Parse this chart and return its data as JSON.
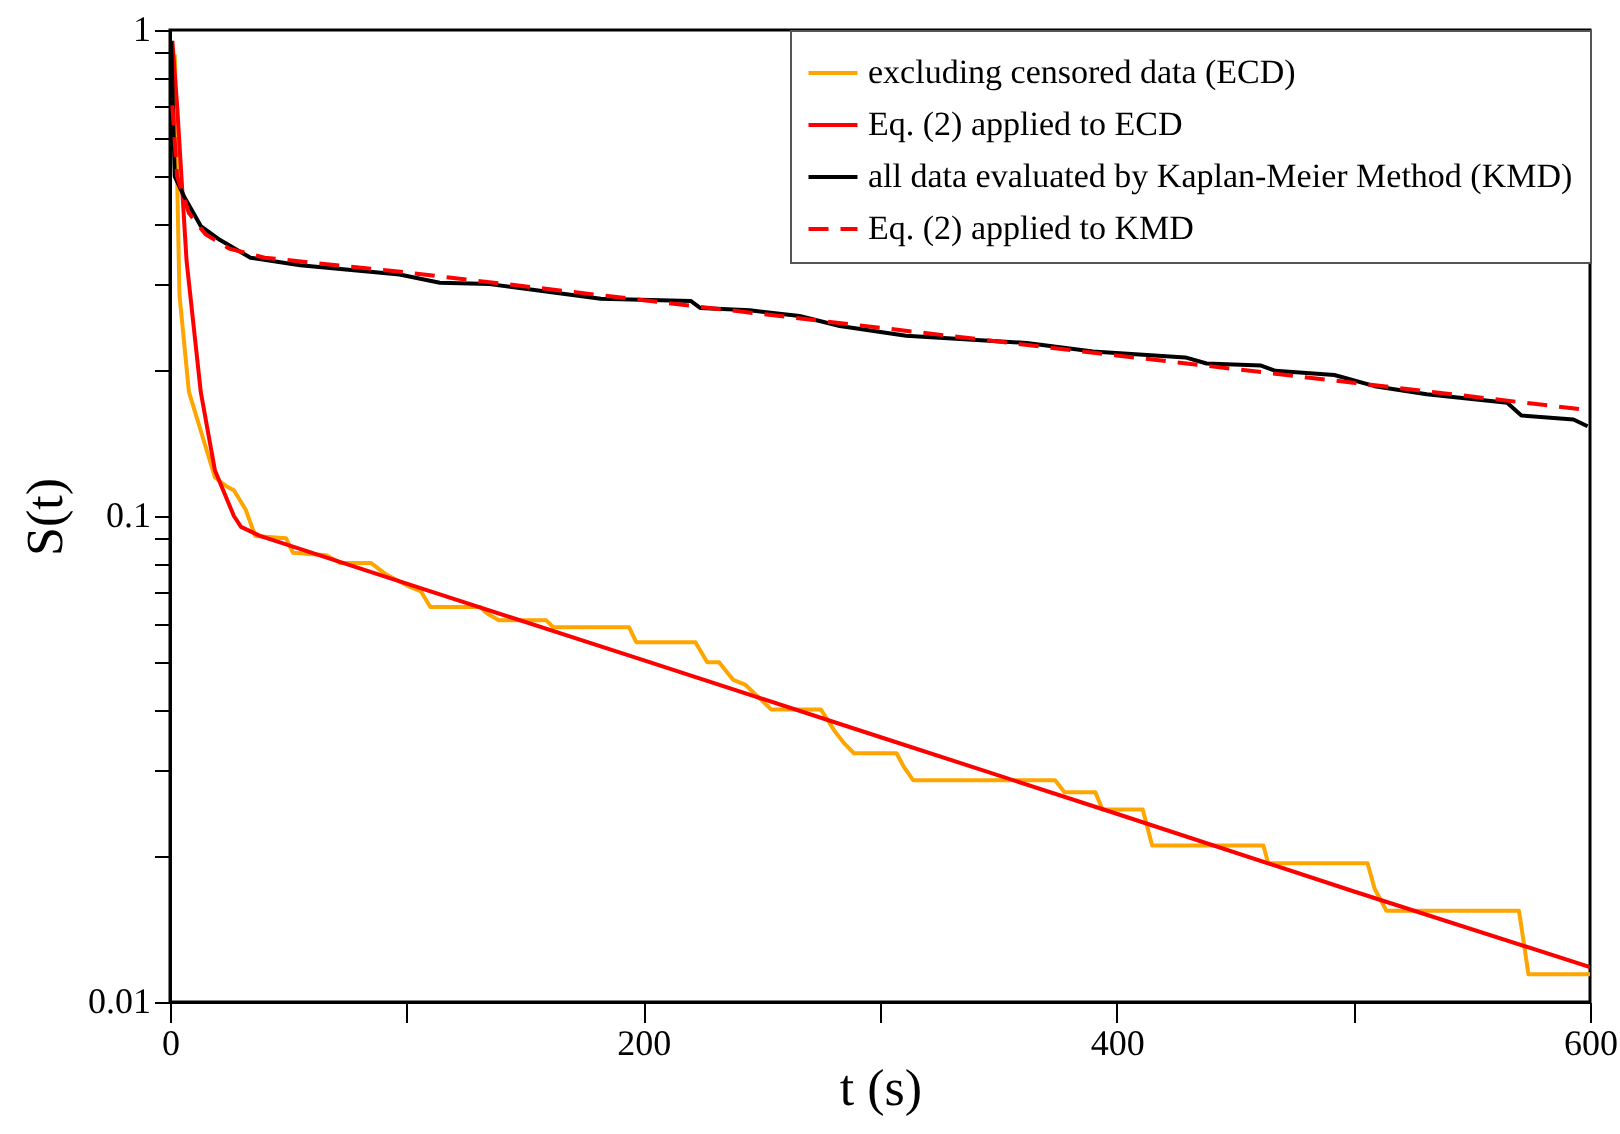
{
  "chart_data": {
    "type": "line",
    "xlabel": "t (s)",
    "ylabel": "S(t)",
    "log": "y",
    "legend": "top right",
    "xlim": [
      0,
      600
    ],
    "xticks": [
      0,
      {
        "value": 100,
        "label": null
      },
      200,
      {
        "value": 300,
        "label": null
      },
      400,
      {
        "value": 500,
        "label": null
      },
      600
    ],
    "ylim": [
      0.01,
      1
    ],
    "yticks": [
      0.01,
      {
        "value": 0.02,
        "label": null
      },
      {
        "value": 0.03,
        "label": null
      },
      {
        "value": 0.04,
        "label": null
      },
      {
        "value": 0.05,
        "label": null
      },
      {
        "value": 0.06,
        "label": null
      },
      {
        "value": 0.07,
        "label": null
      },
      {
        "value": 0.08,
        "label": null
      },
      {
        "value": 0.09,
        "label": null
      },
      0.1,
      {
        "value": 0.2,
        "label": null
      },
      {
        "value": 0.3,
        "label": null
      },
      {
        "value": 0.4,
        "label": null
      },
      {
        "value": 0.5,
        "label": null
      },
      {
        "value": 0.6,
        "label": null
      },
      {
        "value": 0.7,
        "label": null
      },
      {
        "value": 0.8,
        "label": null
      },
      {
        "value": 0.9,
        "label": null
      },
      1
    ],
    "series": [
      {
        "name": "excluding censored data (ECD)",
        "color": "#ffa500",
        "line_style": "solid",
        "x": [
          2,
          4,
          8,
          19,
          24,
          27,
          32,
          36,
          49,
          52,
          66,
          72,
          85,
          91,
          100,
          106,
          110,
          131,
          134,
          139,
          159,
          162,
          194,
          197,
          222,
          227,
          232,
          238,
          243,
          254,
          275,
          281,
          285,
          289,
          307,
          310,
          314,
          374,
          378,
          391,
          394,
          411,
          415,
          462,
          464,
          506,
          509,
          514,
          570,
          574,
          600
        ],
        "values": [
          0.89,
          0.285,
          0.18,
          0.12,
          0.115,
          0.113,
          0.103,
          0.091,
          0.09,
          0.084,
          0.083,
          0.08,
          0.08,
          0.076,
          0.072,
          0.07,
          0.065,
          0.065,
          0.063,
          0.061,
          0.061,
          0.059,
          0.059,
          0.055,
          0.055,
          0.05,
          0.05,
          0.046,
          0.045,
          0.04,
          0.04,
          0.036,
          0.034,
          0.0325,
          0.0325,
          0.0305,
          0.0286,
          0.0286,
          0.027,
          0.027,
          0.0249,
          0.0249,
          0.021,
          0.021,
          0.0193,
          0.0193,
          0.0171,
          0.0154,
          0.0154,
          0.0114,
          0.0114
        ]
      },
      {
        "name": "Eq. (2) applied to ECD",
        "color": "#ff0000",
        "line_style": "solid",
        "x": [
          1,
          3,
          7,
          13,
          19,
          27,
          30,
          38,
          100,
          200,
          300,
          400,
          500,
          600
        ],
        "values": [
          0.95,
          0.7,
          0.335,
          0.18,
          0.124,
          0.1,
          0.095,
          0.091,
          0.0726,
          0.0505,
          0.0351,
          0.0244,
          0.0169,
          0.0118
        ]
      },
      {
        "name": "all data evaluated by Kaplan-Meier Method (KMD)",
        "color": "#000000",
        "line_style": "solid",
        "x": [
          0.5,
          2,
          6,
          13,
          21,
          34,
          55,
          97,
          114,
          135,
          182,
          220,
          224,
          245,
          266,
          283,
          311,
          362,
          390,
          429,
          438,
          461,
          467,
          492,
          509,
          531,
          565,
          571,
          593,
          599
        ],
        "values": [
          0.95,
          0.5,
          0.454,
          0.395,
          0.37,
          0.34,
          0.328,
          0.314,
          0.302,
          0.3,
          0.28,
          0.277,
          0.268,
          0.265,
          0.258,
          0.246,
          0.235,
          0.227,
          0.218,
          0.212,
          0.206,
          0.204,
          0.199,
          0.195,
          0.185,
          0.178,
          0.171,
          0.161,
          0.158,
          0.153
        ]
      },
      {
        "name": "Eq. (2) applied to KMD",
        "color": "#ff0000",
        "line_style": "dashed",
        "x": [
          1,
          3,
          8,
          15,
          25,
          40,
          100,
          200,
          300,
          400,
          500,
          600
        ],
        "values": [
          0.7,
          0.5,
          0.42,
          0.38,
          0.355,
          0.34,
          0.317,
          0.278,
          0.244,
          0.214,
          0.188,
          0.165
        ]
      }
    ]
  }
}
